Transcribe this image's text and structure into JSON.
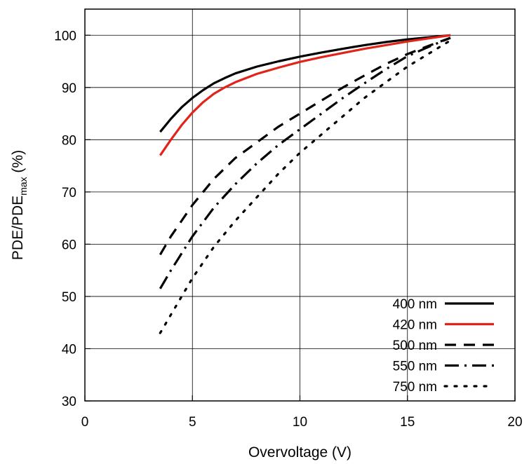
{
  "chart_data": {
    "type": "line",
    "title": "",
    "xlabel": "Overvoltage (V)",
    "ylabel_main": "PDE/PDE",
    "ylabel_sub": "max",
    "ylabel_suffix": " (%)",
    "xlim": [
      0,
      20
    ],
    "ylim": [
      30,
      105
    ],
    "x_ticks": [
      0,
      5,
      10,
      15,
      20
    ],
    "y_ticks": [
      30,
      40,
      50,
      60,
      70,
      80,
      90,
      100
    ],
    "grid": true,
    "legend_position": "bottom-right",
    "series": [
      {
        "name": "400 nm",
        "color": "#000000",
        "dash": "solid",
        "x": [
          3.5,
          4,
          4.5,
          5,
          5.5,
          6,
          6.5,
          7,
          8,
          9,
          10,
          11,
          12,
          13,
          14,
          15,
          16,
          17
        ],
        "y": [
          81.5,
          84.0,
          86.2,
          88.0,
          89.5,
          90.8,
          91.8,
          92.7,
          94.0,
          95.0,
          95.9,
          96.7,
          97.4,
          98.1,
          98.7,
          99.2,
          99.6,
          100
        ]
      },
      {
        "name": "420 nm",
        "color": "#e2231a",
        "dash": "solid",
        "x": [
          3.5,
          4,
          4.5,
          5,
          5.5,
          6,
          6.5,
          7,
          8,
          9,
          10,
          11,
          12,
          13,
          14,
          15,
          16,
          17
        ],
        "y": [
          77.0,
          80.0,
          82.8,
          85.2,
          87.2,
          88.8,
          90.0,
          91.0,
          92.6,
          93.8,
          94.9,
          95.8,
          96.6,
          97.4,
          98.1,
          98.8,
          99.4,
          100
        ]
      },
      {
        "name": "500 nm",
        "color": "#000000",
        "dash": "dash",
        "x": [
          3.5,
          4,
          5,
          6,
          7,
          8,
          9,
          10,
          11,
          12,
          13,
          14,
          15,
          16,
          17
        ],
        "y": [
          58.0,
          61.5,
          67.5,
          72.5,
          76.5,
          79.5,
          82.5,
          85.0,
          87.5,
          90.0,
          92.3,
          94.5,
          96.4,
          98.0,
          99.5
        ]
      },
      {
        "name": "550 nm",
        "color": "#000000",
        "dash": "dashdot",
        "x": [
          3.5,
          4,
          5,
          6,
          7,
          8,
          9,
          10,
          11,
          12,
          13,
          14,
          15,
          16,
          17
        ],
        "y": [
          51.5,
          55.0,
          61.5,
          67.0,
          71.5,
          75.5,
          79.0,
          82.0,
          85.0,
          88.0,
          90.8,
          93.5,
          96.0,
          97.8,
          99.5
        ]
      },
      {
        "name": "750 nm",
        "color": "#000000",
        "dash": "dot",
        "x": [
          3.5,
          4,
          5,
          6,
          7,
          8,
          9,
          10,
          11,
          12,
          13,
          14,
          15,
          16,
          17
        ],
        "y": [
          43.0,
          46.5,
          53.5,
          59.5,
          64.5,
          69.0,
          73.5,
          77.5,
          81.0,
          84.5,
          88.0,
          91.0,
          94.0,
          96.5,
          99.0
        ]
      }
    ]
  }
}
